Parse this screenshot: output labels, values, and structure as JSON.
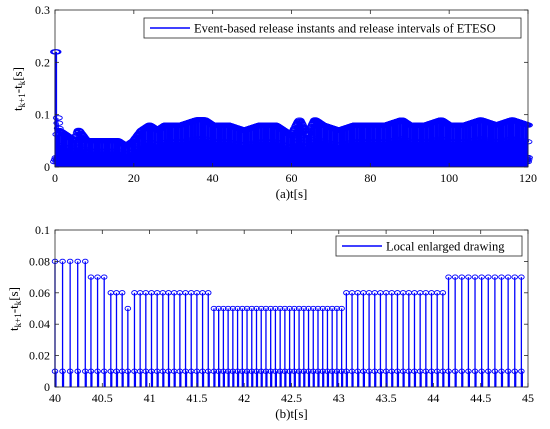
{
  "chart_data": [
    {
      "type": "stem",
      "panel": "top",
      "xlabel": "(a)t[s]",
      "ylabel": "t_{k+1}-t_k[s]",
      "ylabel_main": "t",
      "ylabel_sub1": "k+1",
      "ylabel_mid": "-t",
      "ylabel_sub2": "k",
      "ylabel_tail": "[s]",
      "xlim": [
        0,
        120
      ],
      "ylim": [
        0,
        0.3
      ],
      "xticks": [
        0,
        20,
        40,
        60,
        80,
        100,
        120
      ],
      "yticks": [
        0,
        0.1,
        0.2,
        0.3
      ],
      "xtick_labels": [
        "0",
        "20",
        "40",
        "60",
        "80",
        "100",
        "120"
      ],
      "ytick_labels": [
        "0",
        "0.1",
        "0.2",
        "0.3"
      ],
      "legend": {
        "label": "Event-based release instants and release intervals of ETESO",
        "position": "top-right"
      },
      "color": "#0000ff",
      "series": [
        {
          "name": "Event-based release instants and release intervals of ETESO",
          "envelope": [
            [
              0,
              0.22
            ],
            [
              0.4,
              0.12
            ],
            [
              1,
              0.07
            ],
            [
              3,
              0.06
            ],
            [
              5,
              0.05
            ],
            [
              6,
              0.07
            ],
            [
              8,
              0.05
            ],
            [
              12,
              0.05
            ],
            [
              16,
              0.05
            ],
            [
              18,
              0.04
            ],
            [
              20,
              0.05
            ],
            [
              22,
              0.07
            ],
            [
              24,
              0.08
            ],
            [
              26,
              0.07
            ],
            [
              28,
              0.08
            ],
            [
              32,
              0.08
            ],
            [
              36,
              0.09
            ],
            [
              38,
              0.09
            ],
            [
              40,
              0.08
            ],
            [
              44,
              0.08
            ],
            [
              48,
              0.07
            ],
            [
              52,
              0.08
            ],
            [
              56,
              0.08
            ],
            [
              58,
              0.07
            ],
            [
              60,
              0.06
            ],
            [
              62,
              0.09
            ],
            [
              64,
              0.06
            ],
            [
              66,
              0.09
            ],
            [
              68,
              0.08
            ],
            [
              72,
              0.07
            ],
            [
              76,
              0.08
            ],
            [
              80,
              0.08
            ],
            [
              84,
              0.08
            ],
            [
              88,
              0.09
            ],
            [
              90,
              0.08
            ],
            [
              94,
              0.08
            ],
            [
              98,
              0.09
            ],
            [
              100,
              0.08
            ],
            [
              104,
              0.08
            ],
            [
              108,
              0.09
            ],
            [
              112,
              0.08
            ],
            [
              116,
              0.09
            ],
            [
              120,
              0.08
            ]
          ]
        }
      ]
    },
    {
      "type": "stem",
      "panel": "bottom",
      "xlabel": "(b)t[s]",
      "ylabel": "t_{k+1}-t_k[s]",
      "ylabel_main": "t",
      "ylabel_sub1": "k+1",
      "ylabel_mid": "-t",
      "ylabel_sub2": "k",
      "ylabel_tail": "[s]",
      "xlim": [
        40,
        45
      ],
      "ylim": [
        0,
        0.1
      ],
      "xticks": [
        40,
        40.5,
        41,
        41.5,
        42,
        42.5,
        43,
        43.5,
        44,
        44.5,
        45
      ],
      "yticks": [
        0,
        0.02,
        0.04,
        0.06,
        0.08,
        0.1
      ],
      "xtick_labels": [
        "40",
        "40.5",
        "41",
        "41.5",
        "42",
        "42.5",
        "43",
        "43.5",
        "44",
        "44.5",
        "45"
      ],
      "ytick_labels": [
        "0",
        "0.02",
        "0.04",
        "0.06",
        "0.08",
        "0.1"
      ],
      "legend": {
        "label": "Local enlarged drawing",
        "position": "top-right"
      },
      "color": "#0000ff",
      "secondary_level": 0.01,
      "series": [
        {
          "name": "Local enlarged drawing",
          "segments": [
            {
              "start": 40.0,
              "step": 0.08,
              "count": 4,
              "value": 0.08
            },
            {
              "start": 40.32,
              "step": 0.06,
              "count": 1,
              "value": 0.08
            },
            {
              "start": 40.38,
              "step": 0.07,
              "count": 3,
              "value": 0.07
            },
            {
              "start": 40.59,
              "step": 0.06,
              "count": 3,
              "value": 0.06
            },
            {
              "start": 40.77,
              "step": 0.05,
              "count": 1,
              "value": 0.05
            },
            {
              "start": 40.84,
              "step": 0.06,
              "count": 14,
              "value": 0.06
            },
            {
              "start": 41.68,
              "step": 0.05,
              "count": 28,
              "value": 0.05
            },
            {
              "start": 43.08,
              "step": 0.06,
              "count": 18,
              "value": 0.06
            },
            {
              "start": 44.16,
              "step": 0.07,
              "count": 12,
              "value": 0.07
            }
          ]
        }
      ]
    }
  ]
}
